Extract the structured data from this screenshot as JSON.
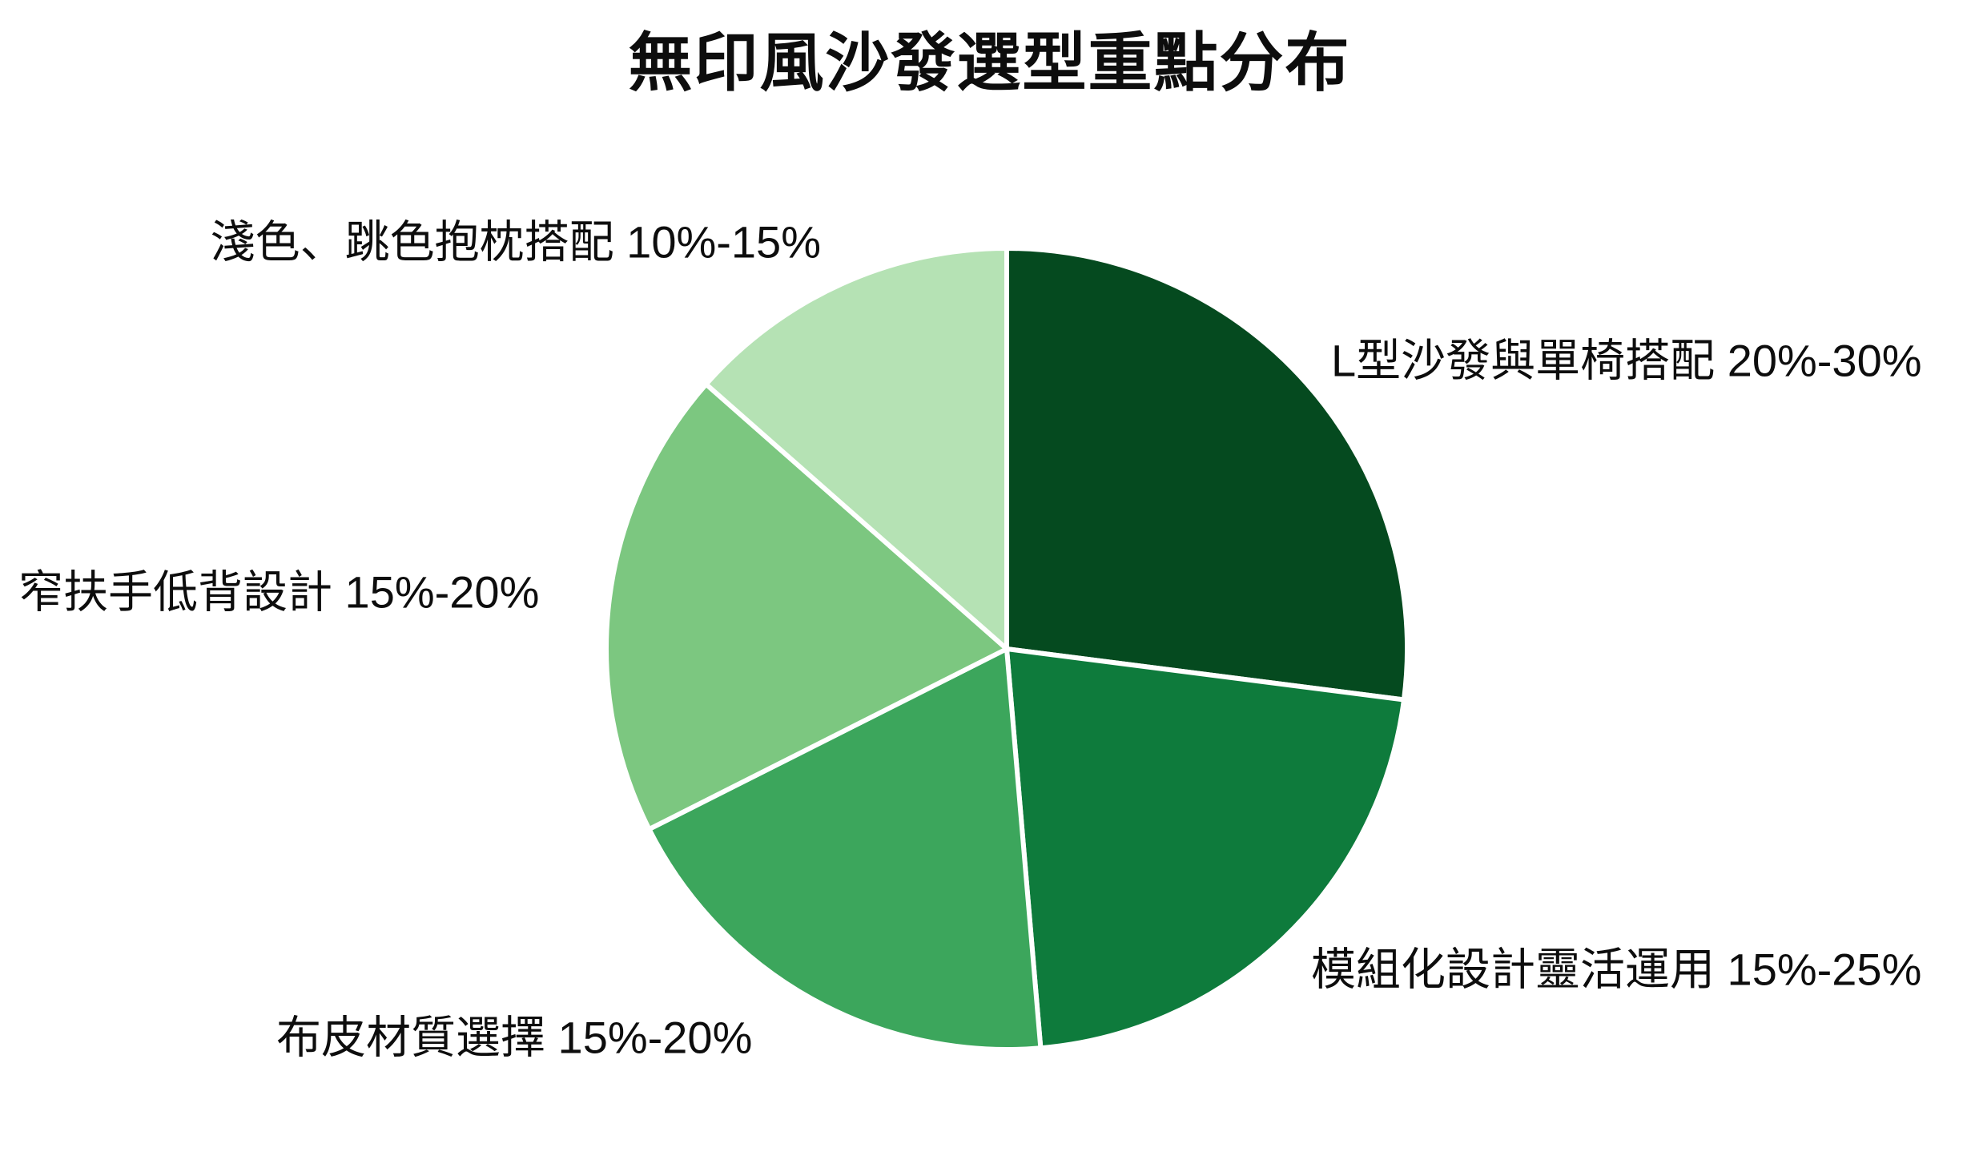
{
  "chart_data": {
    "type": "pie",
    "title": "無印風沙發選型重點分布",
    "start_angle": "top",
    "direction": "clockwise",
    "background": "#ffffff",
    "separator_color": "#ffffff",
    "legend_position": "none",
    "labels_position": "outside",
    "slices": [
      {
        "label": "L型沙發與單椅搭配",
        "range": "20%-30%",
        "text": "L型沙發與單椅搭配 20%-30%",
        "value": 25,
        "approx_share_pct": 27.0,
        "color": "#054A1F"
      },
      {
        "label": "模組化設計靈活運用",
        "range": "15%-25%",
        "text": "模組化設計靈活運用 15%-25%",
        "value": 20,
        "approx_share_pct": 21.6,
        "color": "#0E7B3C"
      },
      {
        "label": "布皮材質選擇",
        "range": "15%-20%",
        "text": "布皮材質選擇 15%-20%",
        "value": 17.5,
        "approx_share_pct": 18.9,
        "color": "#3CA65C"
      },
      {
        "label": "窄扶手低背設計",
        "range": "15%-20%",
        "text": "窄扶手低背設計 15%-20%",
        "value": 17.5,
        "approx_share_pct": 18.9,
        "color": "#7CC780"
      },
      {
        "label": "淺色、跳色抱枕搭配",
        "range": "10%-15%",
        "text": "淺色、跳色抱枕搭配 10%-15%",
        "value": 12.5,
        "approx_share_pct": 13.5,
        "color": "#B5E2B4"
      }
    ]
  }
}
